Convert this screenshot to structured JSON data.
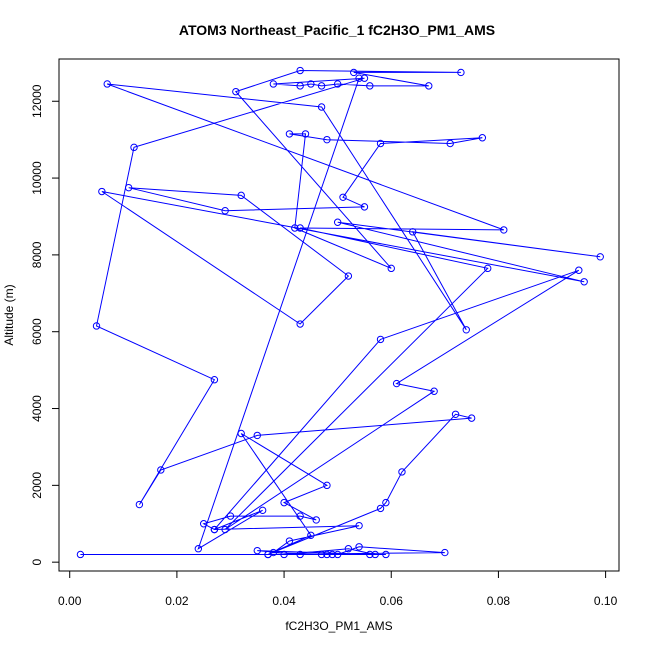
{
  "chart_data": {
    "type": "line",
    "title": "ATOM3 Northeast_Pacific_1 fC2H3O_PM1_AMS",
    "xlabel": "fC2H3O_PM1_AMS",
    "ylabel": "Altitude (m)",
    "xlim": [
      -0.002,
      0.1025
    ],
    "ylim": [
      -230,
      13100
    ],
    "xticks": [
      0.0,
      0.02,
      0.04,
      0.06,
      0.08,
      0.1
    ],
    "xtick_labels": [
      "0.00",
      "0.02",
      "0.04",
      "0.06",
      "0.08",
      "0.10"
    ],
    "yticks": [
      0,
      2000,
      4000,
      6000,
      8000,
      10000,
      12000
    ],
    "ytick_labels": [
      "0",
      "2000",
      "4000",
      "6000",
      "8000",
      "10000",
      "12000"
    ],
    "grid": false,
    "legend": false,
    "series_color": "#0000ff",
    "marker": "open-circle",
    "points": [
      [
        0.002,
        200
      ],
      [
        0.056,
        200
      ],
      [
        0.05,
        200
      ],
      [
        0.054,
        400
      ],
      [
        0.07,
        250
      ],
      [
        0.037,
        200
      ],
      [
        0.047,
        200
      ],
      [
        0.04,
        200
      ],
      [
        0.052,
        350
      ],
      [
        0.057,
        200
      ],
      [
        0.035,
        300
      ],
      [
        0.043,
        200
      ],
      [
        0.048,
        200
      ],
      [
        0.059,
        200
      ],
      [
        0.049,
        200
      ],
      [
        0.038,
        250
      ],
      [
        0.041,
        550
      ],
      [
        0.054,
        950
      ],
      [
        0.027,
        850
      ],
      [
        0.025,
        1000
      ],
      [
        0.03,
        1200
      ],
      [
        0.043,
        1200
      ],
      [
        0.046,
        1100
      ],
      [
        0.04,
        1550
      ],
      [
        0.048,
        2000
      ],
      [
        0.032,
        3350
      ],
      [
        0.045,
        700
      ],
      [
        0.037,
        200
      ],
      [
        0.058,
        1400
      ],
      [
        0.059,
        1550
      ],
      [
        0.062,
        2350
      ],
      [
        0.072,
        3850
      ],
      [
        0.075,
        3750
      ],
      [
        0.035,
        3300
      ],
      [
        0.017,
        2400
      ],
      [
        0.013,
        1500
      ],
      [
        0.027,
        4750
      ],
      [
        0.005,
        6150
      ],
      [
        0.012,
        10800
      ],
      [
        0.055,
        12600
      ],
      [
        0.038,
        12450
      ],
      [
        0.043,
        12400
      ],
      [
        0.045,
        12450
      ],
      [
        0.047,
        12400
      ],
      [
        0.05,
        12450
      ],
      [
        0.056,
        12400
      ],
      [
        0.067,
        12400
      ],
      [
        0.053,
        12750
      ],
      [
        0.073,
        12750
      ],
      [
        0.043,
        12800
      ],
      [
        0.031,
        12250
      ],
      [
        0.06,
        7650
      ],
      [
        0.042,
        8700
      ],
      [
        0.044,
        11150
      ],
      [
        0.041,
        11150
      ],
      [
        0.048,
        11000
      ],
      [
        0.071,
        10900
      ],
      [
        0.077,
        11050
      ],
      [
        0.058,
        10900
      ],
      [
        0.051,
        9500
      ],
      [
        0.055,
        9250
      ],
      [
        0.029,
        9150
      ],
      [
        0.011,
        9750
      ],
      [
        0.032,
        9550
      ],
      [
        0.052,
        7450
      ],
      [
        0.043,
        6200
      ],
      [
        0.006,
        9650
      ],
      [
        0.096,
        7300
      ],
      [
        0.05,
        8850
      ],
      [
        0.099,
        7950
      ],
      [
        0.064,
        8600
      ],
      [
        0.074,
        6050
      ],
      [
        0.047,
        11850
      ],
      [
        0.007,
        12450
      ],
      [
        0.081,
        8650
      ],
      [
        0.043,
        8700
      ],
      [
        0.078,
        7650
      ],
      [
        0.029,
        850
      ],
      [
        0.068,
        4450
      ],
      [
        0.061,
        4650
      ],
      [
        0.095,
        7600
      ],
      [
        0.058,
        5800
      ],
      [
        0.027,
        850
      ],
      [
        0.036,
        1350
      ],
      [
        0.024,
        350
      ],
      [
        0.054,
        12600
      ]
    ]
  }
}
